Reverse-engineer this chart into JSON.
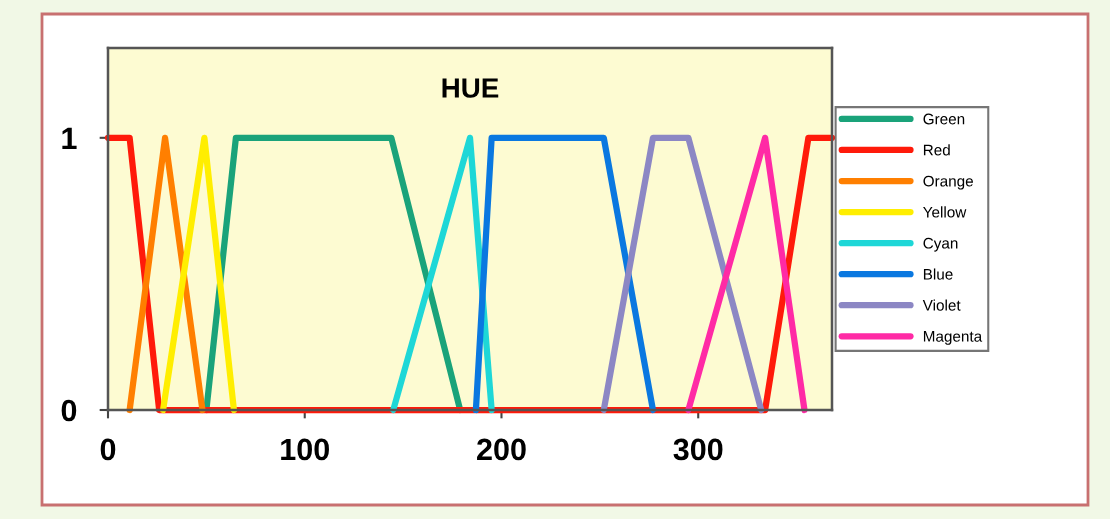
{
  "chart_data": {
    "type": "line",
    "title": "HUE",
    "xlim": [
      0,
      368
    ],
    "xticks": [
      0,
      100,
      200,
      300
    ],
    "ylim": [
      0,
      1.33
    ],
    "yticks": [
      0,
      1
    ],
    "grid": false,
    "legend": "right",
    "marker": "none",
    "line_style": "solid",
    "series": [
      {
        "name": "Green",
        "color": "#1aa37a",
        "x": [
          50,
          65,
          144,
          179
        ],
        "values": [
          0,
          1,
          1,
          0
        ]
      },
      {
        "name": "Red",
        "color": "#ff1a0a",
        "x": [
          0,
          11,
          26,
          334,
          356,
          368
        ],
        "values": [
          1,
          1,
          0,
          0,
          1,
          1
        ]
      },
      {
        "name": "Orange",
        "color": "#ff7f00",
        "x": [
          11,
          29,
          48
        ],
        "values": [
          0,
          1,
          0
        ]
      },
      {
        "name": "Yellow",
        "color": "#ffee00",
        "x": [
          28,
          49,
          64
        ],
        "values": [
          0,
          1,
          0
        ]
      },
      {
        "name": "Cyan",
        "color": "#1ed7d7",
        "x": [
          145,
          184,
          195
        ],
        "values": [
          0,
          1,
          0
        ]
      },
      {
        "name": "Blue",
        "color": "#0a78e0",
        "x": [
          187,
          195,
          252,
          277
        ],
        "values": [
          0,
          1,
          1,
          0
        ]
      },
      {
        "name": "Violet",
        "color": "#8c87c4",
        "x": [
          252,
          277,
          295,
          332
        ],
        "values": [
          0,
          1,
          1,
          0
        ]
      },
      {
        "name": "Magenta",
        "color": "#ff2aa5",
        "x": [
          295,
          334,
          354
        ],
        "values": [
          0,
          1,
          0
        ]
      }
    ]
  }
}
